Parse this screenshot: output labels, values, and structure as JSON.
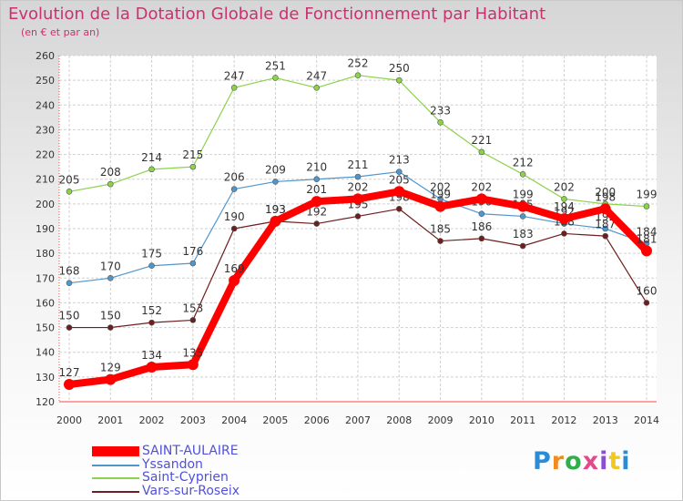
{
  "title": "Evolution de la Dotation Globale de Fonctionnement par Habitant",
  "subtitle": "(en € et par an)",
  "logo": {
    "text": "Proxiti",
    "colors": [
      "#2a8bd6",
      "#f28c1f",
      "#2fae4a",
      "#e24a8c",
      "#8a4ed6",
      "#f2c81f",
      "#2a8bd6"
    ]
  },
  "chart_data": {
    "type": "line",
    "title": "Evolution de la Dotation Globale de Fonctionnement par Habitant",
    "subtitle": "(en € et par an)",
    "xlabel": "",
    "ylabel": "",
    "x": [
      2000,
      2001,
      2002,
      2003,
      2004,
      2005,
      2006,
      2007,
      2008,
      2009,
      2010,
      2011,
      2012,
      2013,
      2014
    ],
    "ylim": [
      120,
      260
    ],
    "yticks": [
      120,
      130,
      140,
      150,
      160,
      170,
      180,
      190,
      200,
      210,
      220,
      230,
      240,
      250,
      260
    ],
    "grid": true,
    "legend_position": "bottom-left",
    "series": [
      {
        "name": "Saint-Cyprien",
        "color": "#8cd24b",
        "values": [
          205,
          208,
          214,
          215,
          247,
          251,
          247,
          252,
          250,
          233,
          221,
          212,
          202,
          200,
          199
        ]
      },
      {
        "name": "Yssandon",
        "color": "#4f96cd",
        "values": [
          168,
          170,
          175,
          176,
          206,
          209,
          210,
          211,
          213,
          202,
          196,
          195,
          192,
          190,
          184
        ]
      },
      {
        "name": "Vars-sur-Roseix",
        "color": "#6e1e1e",
        "values": [
          150,
          150,
          152,
          153,
          190,
          193,
          192,
          195,
          198,
          185,
          186,
          183,
          188,
          187,
          160
        ]
      },
      {
        "name": "SAINT-AULAIRE",
        "color": "#ff0000",
        "values": [
          127,
          129,
          134,
          135,
          169,
          193,
          201,
          202,
          205,
          199,
          202,
          199,
          194,
          198,
          181
        ]
      }
    ],
    "data_labels": {
      "Saint-Cyprien": [
        "205",
        "208",
        "214",
        "215",
        "247",
        "251",
        "247",
        "252",
        "250",
        "233",
        "221",
        "212",
        "202",
        "200",
        "199"
      ],
      "Yssandon": [
        "168",
        "170",
        "175",
        "176",
        "206",
        "209",
        "210",
        "211",
        "213",
        "202",
        "196",
        "195",
        "192",
        "190",
        "184"
      ],
      "Vars-sur-Roseix": [
        "150",
        "150",
        "152",
        "153",
        "190",
        "193",
        "192",
        "195",
        "198",
        "185",
        "186",
        "183",
        "188",
        "187",
        "160"
      ],
      "SAINT-AULAIRE": [
        "127",
        "129",
        "134",
        "135",
        "169",
        "193",
        "201",
        "202",
        "205",
        "199",
        "202",
        "199",
        "194",
        "198",
        "181"
      ]
    },
    "legend_order": [
      "SAINT-AULAIRE",
      "Yssandon",
      "Saint-Cyprien",
      "Vars-sur-Roseix"
    ]
  }
}
